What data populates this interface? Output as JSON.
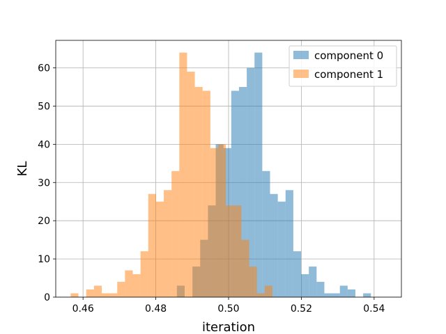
{
  "chart_data": {
    "type": "bar",
    "subtype": "overlapping-histogram",
    "xlabel": "iteration",
    "ylabel": "KL",
    "xlim": [
      0.4525,
      0.5475
    ],
    "ylim": [
      0,
      67.2
    ],
    "xticks": [
      0.46,
      0.48,
      0.5,
      0.52,
      0.54
    ],
    "xtick_labels": [
      "0.46",
      "0.48",
      "0.50",
      "0.52",
      "0.54"
    ],
    "yticks": [
      0,
      10,
      20,
      30,
      40,
      50,
      60
    ],
    "ytick_labels": [
      "0",
      "10",
      "20",
      "30",
      "40",
      "50",
      "60"
    ],
    "grid": true,
    "legend_position": "top-right",
    "series": [
      {
        "name": "component 0",
        "color": "#1f77b4",
        "opacity": 0.5,
        "bin_start": 0.4858,
        "bin_width": 0.002133,
        "values": [
          3,
          0,
          8,
          15,
          24,
          40,
          39,
          54,
          55,
          60,
          64,
          33,
          27,
          25,
          28,
          12,
          6,
          8,
          4,
          1,
          1,
          3,
          2,
          0,
          1
        ]
      },
      {
        "name": "component 1",
        "color": "#ff7f0e",
        "opacity": 0.5,
        "bin_start": 0.4566,
        "bin_width": 0.002133,
        "values": [
          1,
          0,
          2,
          3,
          1,
          1,
          4,
          7,
          6,
          12,
          27,
          25,
          28,
          33,
          64,
          59,
          55,
          54,
          39,
          40,
          24,
          24,
          15,
          8,
          1,
          3
        ]
      }
    ]
  }
}
